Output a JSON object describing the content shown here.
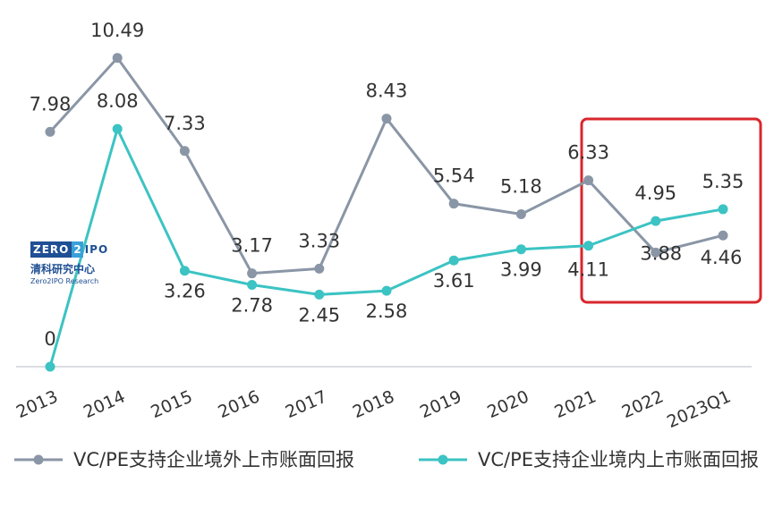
{
  "chart_data": {
    "type": "line",
    "categories": [
      "2013",
      "2014",
      "2015",
      "2016",
      "2017",
      "2018",
      "2019",
      "2020",
      "2021",
      "2022",
      "2023Q1"
    ],
    "series": [
      {
        "name": "VC/PE支持企业境外上市账面回报",
        "values": [
          7.98,
          10.49,
          7.33,
          3.17,
          3.33,
          8.43,
          5.54,
          5.18,
          6.33,
          3.88,
          4.46
        ],
        "color": "#8a96a6"
      },
      {
        "name": "VC/PE支持企业境内上市账面回报",
        "values": [
          0,
          8.08,
          3.26,
          2.78,
          2.45,
          2.58,
          3.61,
          3.99,
          4.11,
          4.95,
          5.35
        ],
        "color": "#3cc3c3"
      }
    ],
    "ylim": [
      0,
      11
    ],
    "grid": false,
    "legend": "bottom",
    "highlight": {
      "categories": [
        "2021",
        "2022",
        "2023Q1"
      ],
      "color": "#d9262c"
    }
  },
  "logo": {
    "zero": "ZERO",
    "two": "2",
    "ipo": "IPO",
    "cn": "清科研究中心",
    "en": "Zero2IPO Research"
  }
}
